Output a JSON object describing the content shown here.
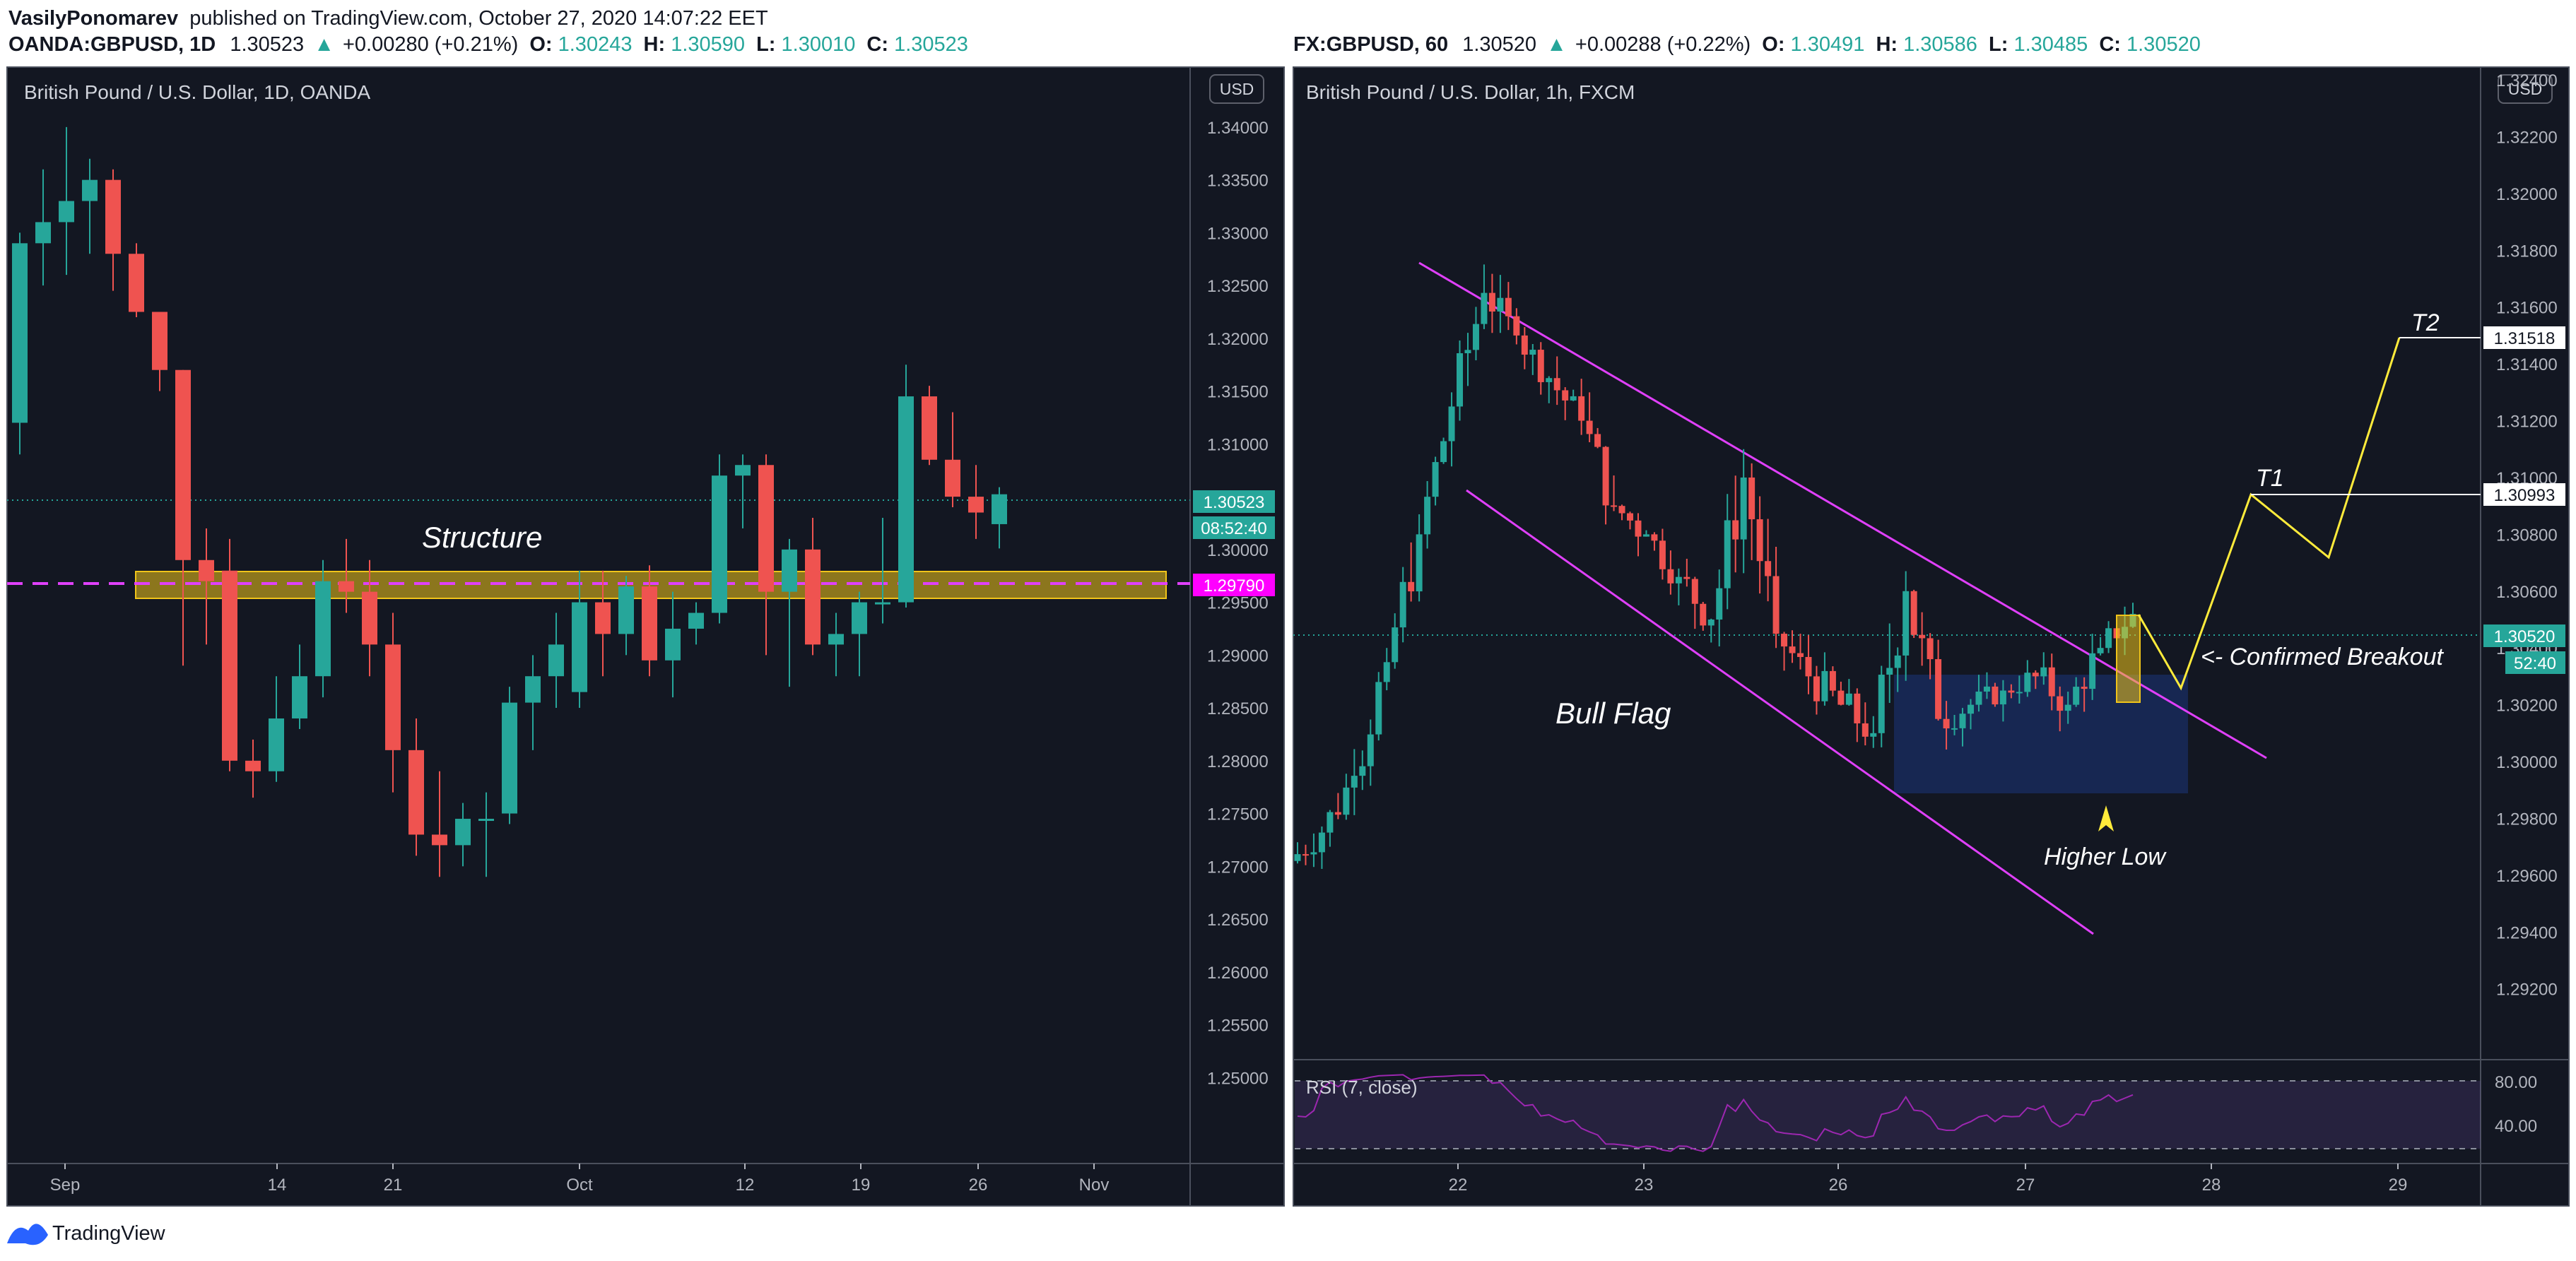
{
  "header": {
    "line1_user": "VasilyPonomarev",
    "line1_rest": "published on TradingView.com, October 27, 2020 14:07:22 EET"
  },
  "left": {
    "symbol": "OANDA:GBPUSD, 1D",
    "price": "1.30523",
    "change": "+0.00280 (+0.21%)",
    "o_label": "O:",
    "o": "1.30243",
    "h_label": "H:",
    "h": "1.30590",
    "l_label": "L:",
    "l": "1.30010",
    "c_label": "C:",
    "c": "1.30523",
    "title": "British Pound / U.S. Dollar, 1D, OANDA",
    "currency": "USD",
    "annotation_structure": "Structure",
    "price_tag": "1.30523",
    "countdown_tag": "08:52:40",
    "level_tag": "1.29790",
    "y_ticks": [
      "1.34000",
      "1.33500",
      "1.33000",
      "1.32500",
      "1.32000",
      "1.31500",
      "1.31000",
      "1.30500",
      "1.30000",
      "1.29500",
      "1.29000",
      "1.28500",
      "1.28000",
      "1.27500",
      "1.27000",
      "1.26500",
      "1.26000",
      "1.25500",
      "1.25000"
    ],
    "x_ticks": [
      "Sep",
      "14",
      "21",
      "Oct",
      "12",
      "19",
      "26",
      "Nov"
    ]
  },
  "right": {
    "symbol": "FX:GBPUSD, 60",
    "price": "1.30520",
    "change": "+0.00288 (+0.22%)",
    "o_label": "O:",
    "o": "1.30491",
    "h_label": "H:",
    "h": "1.30586",
    "l_label": "L:",
    "l": "1.30485",
    "c_label": "C:",
    "c": "1.30520",
    "title": "British Pound / U.S. Dollar, 1h, FXCM",
    "currency": "USD",
    "annotation_bull_flag": "Bull Flag",
    "annotation_higher_low": "Higher Low",
    "annotation_breakout": "<- Confirmed Breakout",
    "label_t1": "T1",
    "label_t2": "T2",
    "tag_t2": "1.31518",
    "tag_t1": "1.30993",
    "price_tag": "1.30520",
    "countdown_tag": "52:40",
    "y_ticks": [
      "1.32400",
      "1.32200",
      "1.32000",
      "1.31800",
      "1.31600",
      "1.31400",
      "1.31200",
      "1.31000",
      "1.30800",
      "1.30600",
      "1.30400",
      "1.30200",
      "1.30000",
      "1.29800",
      "1.29600",
      "1.29400",
      "1.29200"
    ],
    "x_ticks": [
      "22",
      "23",
      "26",
      "27",
      "28",
      "29"
    ],
    "rsi_label": "RSI (7, close)",
    "rsi_ticks": [
      "80.00",
      "40.00"
    ]
  },
  "footer": {
    "brand": "TradingView"
  },
  "colors": {
    "background": "#131722",
    "up": "#26a69a",
    "down": "#ef5350",
    "zone": "#f0c419",
    "channel": "#e040fb",
    "projection": "#ffeb3b",
    "magenta_tag": "#ff00ff",
    "rsi": "#9c27b0"
  },
  "chart_data": [
    {
      "type": "candlestick",
      "title": "British Pound / U.S. Dollar, 1D, OANDA",
      "x_ticks": [
        "Sep",
        "14",
        "21",
        "Oct",
        "12",
        "19",
        "26",
        "Nov"
      ],
      "ylim": [
        1.245,
        1.342
      ],
      "ohlc": [
        [
          1.312,
          1.33,
          1.309,
          1.329
        ],
        [
          1.329,
          1.336,
          1.325,
          1.331
        ],
        [
          1.331,
          1.34,
          1.326,
          1.333
        ],
        [
          1.333,
          1.337,
          1.328,
          1.335
        ],
        [
          1.335,
          1.336,
          1.3245,
          1.328
        ],
        [
          1.328,
          1.329,
          1.322,
          1.3225
        ],
        [
          1.3225,
          1.3225,
          1.315,
          1.317
        ],
        [
          1.317,
          1.317,
          1.289,
          1.299
        ],
        [
          1.299,
          1.302,
          1.291,
          1.297
        ],
        [
          1.298,
          1.301,
          1.279,
          1.28
        ],
        [
          1.28,
          1.282,
          1.2765,
          1.279
        ],
        [
          1.279,
          1.288,
          1.278,
          1.284
        ],
        [
          1.284,
          1.291,
          1.283,
          1.288
        ],
        [
          1.288,
          1.299,
          1.286,
          1.297
        ],
        [
          1.297,
          1.301,
          1.294,
          1.296
        ],
        [
          1.296,
          1.299,
          1.288,
          1.291
        ],
        [
          1.291,
          1.294,
          1.277,
          1.281
        ],
        [
          1.281,
          1.284,
          1.271,
          1.273
        ],
        [
          1.273,
          1.279,
          1.269,
          1.272
        ],
        [
          1.272,
          1.276,
          1.27,
          1.2745
        ],
        [
          1.2745,
          1.277,
          1.269,
          1.2745
        ],
        [
          1.275,
          1.287,
          1.274,
          1.2855
        ],
        [
          1.2855,
          1.29,
          1.281,
          1.288
        ],
        [
          1.288,
          1.294,
          1.285,
          1.291
        ],
        [
          1.2865,
          1.298,
          1.285,
          1.295
        ],
        [
          1.295,
          1.298,
          1.288,
          1.292
        ],
        [
          1.292,
          1.2975,
          1.29,
          1.2965
        ],
        [
          1.2965,
          1.2985,
          1.288,
          1.2895
        ],
        [
          1.2895,
          1.296,
          1.286,
          1.2925
        ],
        [
          1.2925,
          1.295,
          1.291,
          1.294
        ],
        [
          1.294,
          1.309,
          1.293,
          1.307
        ],
        [
          1.307,
          1.309,
          1.302,
          1.308
        ],
        [
          1.308,
          1.309,
          1.29,
          1.296
        ],
        [
          1.296,
          1.301,
          1.287,
          1.3
        ],
        [
          1.3,
          1.303,
          1.29,
          1.291
        ],
        [
          1.291,
          1.294,
          1.288,
          1.292
        ],
        [
          1.292,
          1.296,
          1.288,
          1.295
        ],
        [
          1.295,
          1.303,
          1.293,
          1.295
        ],
        [
          1.295,
          1.3175,
          1.2945,
          1.3145
        ],
        [
          1.3145,
          1.3155,
          1.308,
          1.3085
        ],
        [
          1.3085,
          1.313,
          1.304,
          1.305
        ],
        [
          1.305,
          1.308,
          1.301,
          1.3035
        ],
        [
          1.3024,
          1.3059,
          1.3001,
          1.30523
        ]
      ]
    },
    {
      "type": "candlestick",
      "title": "British Pound / U.S. Dollar, 1h, FXCM",
      "x_ticks": [
        "22",
        "23",
        "26",
        "27",
        "28",
        "29"
      ],
      "ylim": [
        1.2905,
        1.3242
      ],
      "ohlc_summary": [
        [
          1.2965,
          1.2985,
          1.2955,
          1.2975
        ],
        [
          1.2975,
          1.3005,
          1.2965,
          1.2995
        ],
        [
          1.2995,
          1.304,
          1.299,
          1.3035
        ],
        [
          1.3035,
          1.309,
          1.303,
          1.308
        ],
        [
          1.308,
          1.313,
          1.3075,
          1.3125
        ],
        [
          1.3125,
          1.3175,
          1.312,
          1.3165
        ],
        [
          1.3165,
          1.3175,
          1.314,
          1.315
        ],
        [
          1.315,
          1.3155,
          1.3125,
          1.3135
        ],
        [
          1.3135,
          1.315,
          1.3115,
          1.312
        ],
        [
          1.312,
          1.313,
          1.308,
          1.309
        ],
        [
          1.309,
          1.3105,
          1.307,
          1.308
        ],
        [
          1.308,
          1.309,
          1.3055,
          1.3065
        ],
        [
          1.3065,
          1.308,
          1.304,
          1.305
        ],
        [
          1.305,
          1.311,
          1.304,
          1.31
        ],
        [
          1.31,
          1.3105,
          1.304,
          1.3045
        ],
        [
          1.3045,
          1.3055,
          1.302,
          1.303
        ],
        [
          1.303,
          1.305,
          1.301,
          1.302
        ],
        [
          1.302,
          1.3035,
          1.2995,
          1.301
        ],
        [
          1.301,
          1.3075,
          1.3005,
          1.306
        ],
        [
          1.306,
          1.307,
          1.3,
          1.3015
        ],
        [
          1.3015,
          1.303,
          1.2995,
          1.302
        ],
        [
          1.302,
          1.3035,
          1.301,
          1.3025
        ],
        [
          1.3025,
          1.304,
          1.3015,
          1.303
        ],
        [
          1.303,
          1.304,
          1.3005,
          1.302
        ],
        [
          1.302,
          1.3045,
          1.301,
          1.304
        ],
        [
          1.304,
          1.3059,
          1.303,
          1.3052
        ]
      ],
      "annotations": [
        "Bull Flag",
        "Higher Low",
        "<- Confirmed Breakout",
        "T1",
        "T2"
      ],
      "targets": {
        "T1": 1.30993,
        "T2": 1.31518
      },
      "rsi": {
        "label": "RSI (7, close)",
        "levels": [
          80,
          40
        ]
      }
    }
  ]
}
